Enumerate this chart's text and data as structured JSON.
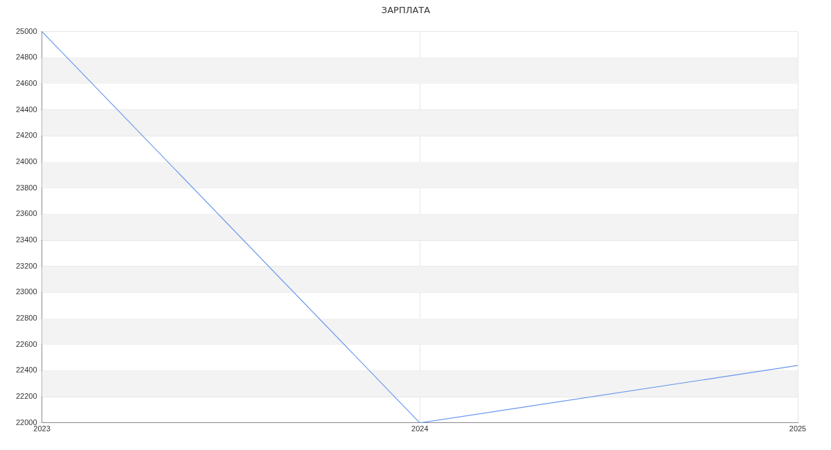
{
  "chart_data": {
    "type": "line",
    "title": "ЗАРПЛАТА",
    "x": [
      2023,
      2024,
      2025
    ],
    "series": [
      {
        "color": "#6495ed",
        "values": [
          25000,
          22000,
          22440
        ]
      }
    ],
    "xlim": [
      2023,
      2025
    ],
    "xticks": [
      2023,
      2024,
      2025
    ],
    "ylim": [
      22000,
      25000
    ],
    "yticks": [
      22000,
      22200,
      22400,
      22600,
      22800,
      23000,
      23200,
      23400,
      23600,
      23800,
      24000,
      24200,
      24400,
      24600,
      24800,
      25000
    ],
    "grid": true,
    "legend": false,
    "marker": "none",
    "line_style": "solid"
  }
}
